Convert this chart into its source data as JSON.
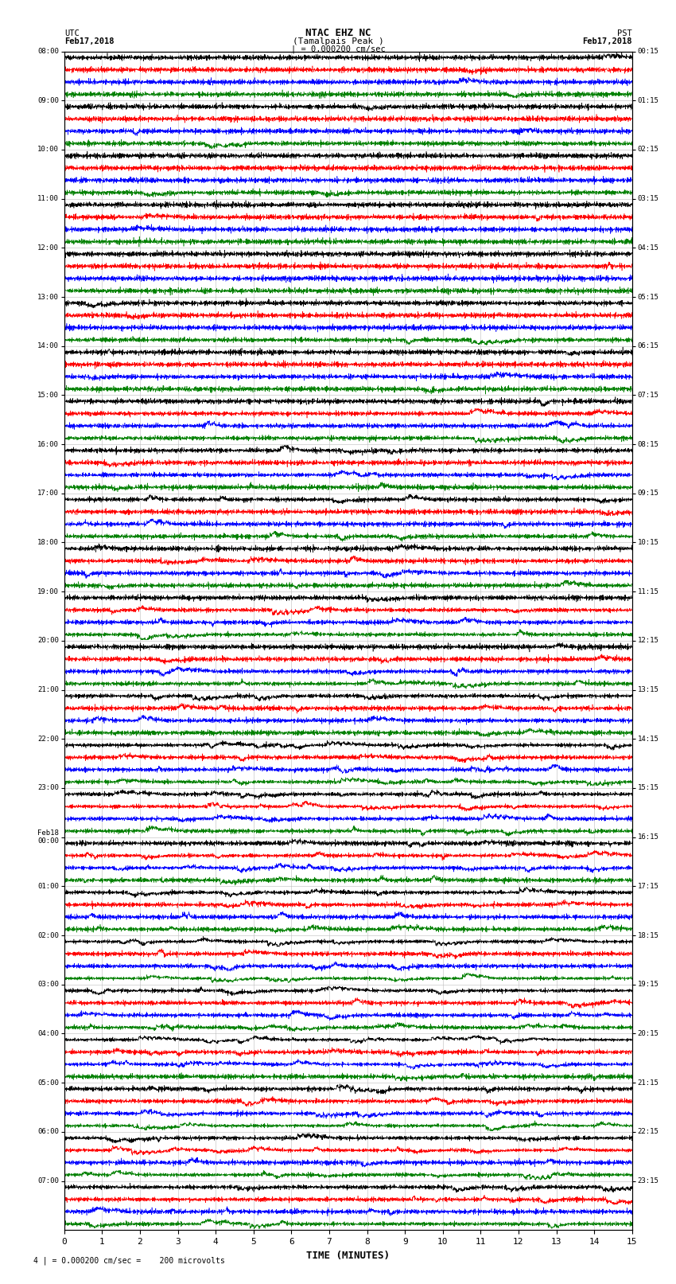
{
  "title_line1": "NTAC EHZ NC",
  "title_line2": "(Tamalpais Peak )",
  "title_scale": "| = 0.000200 cm/sec",
  "left_header_line1": "UTC",
  "left_header_line2": "Feb17,2018",
  "right_header_line1": "PST",
  "right_header_line2": "Feb17,2018",
  "left_times": [
    "08:00",
    "09:00",
    "10:00",
    "11:00",
    "12:00",
    "13:00",
    "14:00",
    "15:00",
    "16:00",
    "17:00",
    "18:00",
    "19:00",
    "20:00",
    "21:00",
    "22:00",
    "23:00",
    "Feb18\n00:00",
    "01:00",
    "02:00",
    "03:00",
    "04:00",
    "05:00",
    "06:00",
    "07:00"
  ],
  "right_times": [
    "00:15",
    "01:15",
    "02:15",
    "03:15",
    "04:15",
    "05:15",
    "06:15",
    "07:15",
    "08:15",
    "09:15",
    "10:15",
    "11:15",
    "12:15",
    "13:15",
    "14:15",
    "15:15",
    "16:15",
    "17:15",
    "18:15",
    "19:15",
    "20:15",
    "21:15",
    "22:15",
    "23:15"
  ],
  "xlabel": "TIME (MINUTES)",
  "footer": "4 | = 0.000200 cm/sec =    200 microvolts",
  "n_rows": 24,
  "traces_per_row": 4,
  "colors": [
    "black",
    "red",
    "blue",
    "green"
  ],
  "xlim": [
    0,
    15
  ],
  "xticks": [
    0,
    1,
    2,
    3,
    4,
    5,
    6,
    7,
    8,
    9,
    10,
    11,
    12,
    13,
    14,
    15
  ],
  "background_color": "white",
  "grid_color": "#bbbbbb",
  "fig_width": 8.5,
  "fig_height": 16.13
}
